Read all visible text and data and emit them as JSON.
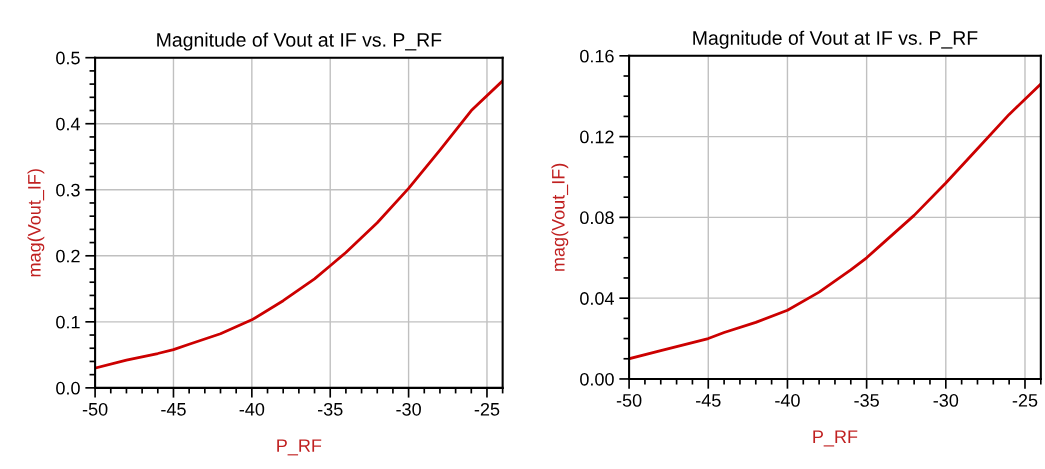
{
  "chart_data": [
    {
      "type": "line",
      "title": "Magnitude of Vout at IF vs. P_RF",
      "xlabel": "P_RF",
      "ylabel": "mag(Vout_IF)",
      "grid": true,
      "marker": "none",
      "line_style": "solid",
      "xlim": [
        -50,
        -24
      ],
      "xticks": [
        -50,
        -45,
        -40,
        -35,
        -30,
        -25
      ],
      "ylim": [
        0,
        0.5
      ],
      "yticks": [
        {
          "value": 0,
          "label": "0.0"
        },
        0.1,
        0.2,
        0.3,
        0.4,
        0.5
      ],
      "x": [
        -50,
        -48,
        -46,
        -45,
        -44,
        -42,
        -40,
        -38,
        -36,
        -35,
        -34,
        -32,
        -30,
        -28,
        -26,
        -24
      ],
      "series": [
        {
          "color": "#cc0000",
          "values": [
            0.03,
            0.042,
            0.052,
            0.058,
            0.066,
            0.082,
            0.103,
            0.132,
            0.165,
            0.185,
            0.205,
            0.25,
            0.302,
            0.36,
            0.42,
            0.465
          ]
        }
      ]
    },
    {
      "type": "line",
      "title": "Magnitude of Vout at IF vs. P_RF",
      "xlabel": "P_RF",
      "ylabel": "mag(Vout_IF)",
      "grid": true,
      "marker": "none",
      "line_style": "solid",
      "xlim": [
        -50,
        -24
      ],
      "xticks": [
        -50,
        -45,
        -40,
        -35,
        -30,
        -25
      ],
      "ylim": [
        0,
        0.16
      ],
      "yticks": [
        {
          "value": 0,
          "label": "0.00"
        },
        0.04,
        0.08,
        0.12,
        0.16
      ],
      "x": [
        -50,
        -48,
        -46,
        -45,
        -44,
        -42,
        -40,
        -38,
        -36,
        -35,
        -34,
        -32,
        -30,
        -28,
        -26,
        -24
      ],
      "series": [
        {
          "color": "#cc0000",
          "values": [
            0.01,
            0.014,
            0.018,
            0.02,
            0.023,
            0.028,
            0.034,
            0.043,
            0.054,
            0.06,
            0.067,
            0.081,
            0.097,
            0.114,
            0.131,
            0.146
          ]
        }
      ]
    }
  ]
}
